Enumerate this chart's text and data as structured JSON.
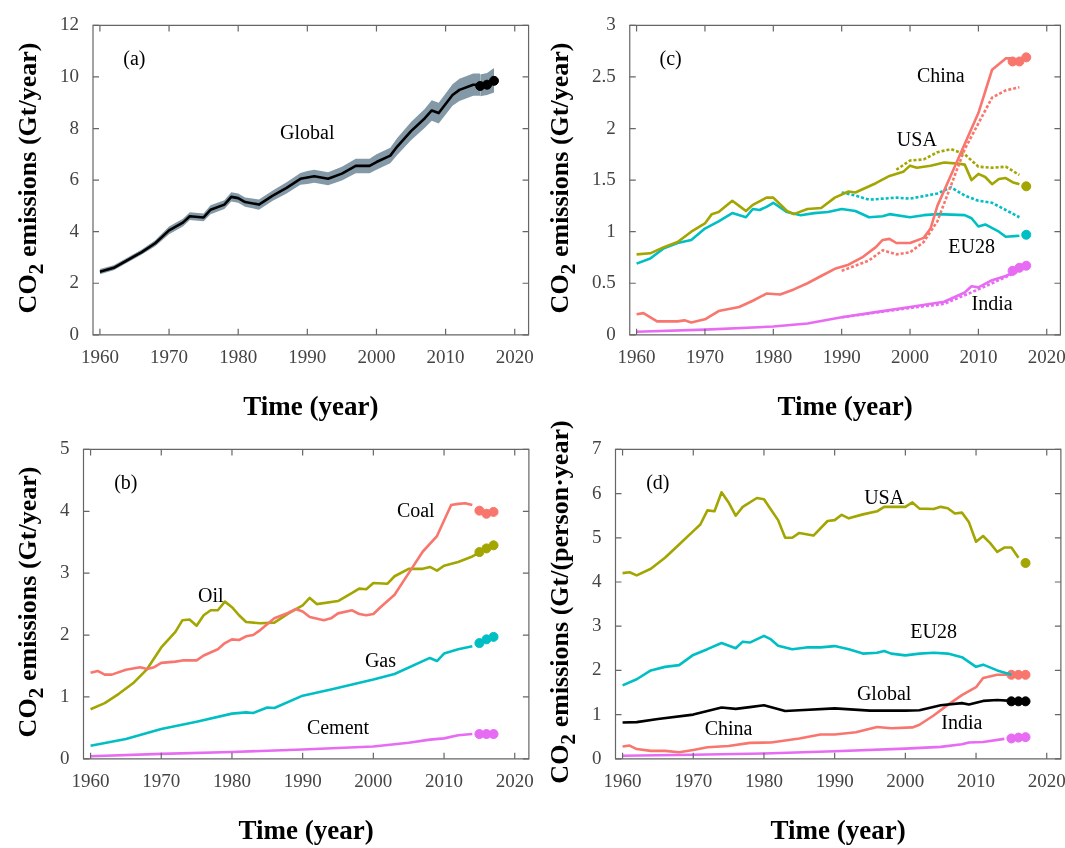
{
  "chart_data": [
    {
      "type": "line",
      "annotations": [
        "(a)"
      ],
      "xlabel": "Time (year)",
      "ylabel": "CO$_{2}$ emissions (Gt/year)",
      "xlim": [
        1959,
        2022
      ],
      "xticks": [
        1960,
        1970,
        1980,
        1990,
        2000,
        2010,
        2020
      ],
      "ylim": [
        0,
        12
      ],
      "yticks": [
        0,
        2,
        4,
        6,
        8,
        10,
        12
      ],
      "series": [
        {
          "name": "Global",
          "color": "#000000",
          "x": [
            1960,
            1962,
            1964,
            1966,
            1968,
            1970,
            1972,
            1973,
            1975,
            1976,
            1978,
            1979,
            1980,
            1981,
            1983,
            1985,
            1987,
            1989,
            1990,
            1991,
            1993,
            1995,
            1997,
            1999,
            2000,
            2002,
            2003,
            2005,
            2007,
            2008,
            2009,
            2011,
            2012,
            2014,
            2015
          ],
          "values": [
            2.45,
            2.6,
            2.9,
            3.2,
            3.55,
            4.05,
            4.35,
            4.6,
            4.55,
            4.85,
            5.05,
            5.35,
            5.3,
            5.15,
            5.05,
            5.4,
            5.7,
            6.05,
            6.1,
            6.15,
            6.05,
            6.25,
            6.55,
            6.55,
            6.7,
            6.95,
            7.3,
            7.9,
            8.4,
            8.7,
            8.6,
            9.3,
            9.5,
            9.7,
            9.7
          ],
          "lower": [
            2.35,
            2.5,
            2.8,
            3.1,
            3.43,
            3.9,
            4.2,
            4.45,
            4.4,
            4.68,
            4.88,
            5.17,
            5.12,
            4.97,
            4.85,
            5.2,
            5.48,
            5.82,
            5.85,
            5.9,
            5.8,
            5.98,
            6.27,
            6.27,
            6.4,
            6.65,
            6.97,
            7.55,
            8.03,
            8.3,
            8.2,
            8.88,
            9.07,
            9.27,
            9.27
          ],
          "upper": [
            2.55,
            2.7,
            3.0,
            3.3,
            3.67,
            4.2,
            4.5,
            4.75,
            4.7,
            5.02,
            5.22,
            5.53,
            5.48,
            5.33,
            5.25,
            5.6,
            5.92,
            6.28,
            6.35,
            6.4,
            6.3,
            6.52,
            6.83,
            6.83,
            7.0,
            7.25,
            7.63,
            8.25,
            8.77,
            9.1,
            9.0,
            9.72,
            9.93,
            10.13,
            10.13
          ]
        },
        {
          "type": "scatter",
          "marker": "circle",
          "color": "#000000",
          "x": [
            2015,
            2016,
            2017
          ],
          "values": [
            9.65,
            9.7,
            9.85
          ],
          "lower": [
            9.25,
            9.3,
            9.4
          ],
          "upper": [
            10.1,
            10.15,
            10.35
          ]
        }
      ]
    },
    {
      "type": "line",
      "annotations": [
        "(c)"
      ],
      "xlabel": "Time (year)",
      "ylabel": "CO$_{2}$ emissions (Gt/year)",
      "xlim": [
        1959,
        2022
      ],
      "xticks": [
        1960,
        1970,
        1980,
        1990,
        2000,
        2010,
        2020
      ],
      "ylim": [
        0,
        3
      ],
      "yticks": [
        0,
        0.5,
        1,
        1.5,
        2,
        2.5,
        3
      ],
      "series": [
        {
          "name": "China",
          "color": "#f8766d",
          "x": [
            1960,
            1961,
            1963,
            1966,
            1967,
            1968,
            1970,
            1972,
            1975,
            1977,
            1979,
            1981,
            1983,
            1985,
            1987,
            1989,
            1991,
            1993,
            1995,
            1996,
            1997,
            1998,
            2000,
            2002,
            2003,
            2004,
            2006,
            2008,
            2010,
            2012,
            2014,
            2015
          ],
          "values": [
            0.2,
            0.21,
            0.13,
            0.13,
            0.14,
            0.12,
            0.15,
            0.23,
            0.27,
            0.33,
            0.4,
            0.39,
            0.44,
            0.5,
            0.57,
            0.64,
            0.68,
            0.75,
            0.85,
            0.92,
            0.93,
            0.89,
            0.89,
            0.94,
            1.03,
            1.25,
            1.55,
            1.85,
            2.15,
            2.57,
            2.68,
            2.68
          ]
        },
        {
          "line_style": "dotted",
          "color": "#f8766d",
          "x": [
            1990,
            1994,
            1996,
            1998,
            2000,
            2002,
            2004,
            2006,
            2008,
            2010,
            2012,
            2014,
            2016
          ],
          "values": [
            0.62,
            0.72,
            0.82,
            0.78,
            0.8,
            0.9,
            1.1,
            1.45,
            1.8,
            2.05,
            2.3,
            2.37,
            2.4
          ]
        },
        {
          "type": "scatter",
          "marker": "circle",
          "color": "#f8766d",
          "x": [
            2015,
            2016,
            2017
          ],
          "values": [
            2.65,
            2.65,
            2.69
          ]
        },
        {
          "name": "USA",
          "color": "#a3a500",
          "x": [
            1960,
            1962,
            1964,
            1966,
            1968,
            1970,
            1971,
            1972,
            1974,
            1975,
            1976,
            1977,
            1979,
            1980,
            1982,
            1983,
            1985,
            1987,
            1989,
            1991,
            1992,
            1995,
            1997,
            1999,
            2000,
            2001,
            2003,
            2005,
            2007,
            2008,
            2009,
            2010,
            2011,
            2012,
            2013,
            2014,
            2015,
            2016
          ],
          "values": [
            0.78,
            0.79,
            0.85,
            0.9,
            1.0,
            1.08,
            1.17,
            1.19,
            1.3,
            1.25,
            1.2,
            1.26,
            1.33,
            1.33,
            1.2,
            1.17,
            1.22,
            1.23,
            1.33,
            1.39,
            1.38,
            1.47,
            1.54,
            1.58,
            1.64,
            1.62,
            1.64,
            1.67,
            1.66,
            1.65,
            1.5,
            1.56,
            1.53,
            1.46,
            1.51,
            1.52,
            1.48,
            1.46
          ]
        },
        {
          "line_style": "dotted",
          "color": "#a3a500",
          "x": [
            1998,
            2000,
            2002,
            2004,
            2006,
            2008,
            2010,
            2012,
            2014,
            2016
          ],
          "values": [
            1.6,
            1.69,
            1.7,
            1.77,
            1.8,
            1.75,
            1.63,
            1.62,
            1.63,
            1.55
          ]
        },
        {
          "type": "scatter",
          "marker": "circle",
          "color": "#a3a500",
          "x": [
            2017
          ],
          "values": [
            1.44
          ]
        },
        {
          "name": "EU28",
          "color": "#00bfc4",
          "x": [
            1960,
            1962,
            1964,
            1966,
            1968,
            1970,
            1972,
            1974,
            1976,
            1977,
            1978,
            1979,
            1980,
            1982,
            1984,
            1986,
            1988,
            1990,
            1992,
            1994,
            1996,
            1997,
            2000,
            2002,
            2004,
            2008,
            2009,
            2010,
            2011,
            2013,
            2014,
            2016
          ],
          "values": [
            0.69,
            0.74,
            0.84,
            0.89,
            0.92,
            1.03,
            1.1,
            1.18,
            1.14,
            1.22,
            1.21,
            1.24,
            1.28,
            1.19,
            1.16,
            1.18,
            1.19,
            1.22,
            1.2,
            1.14,
            1.15,
            1.17,
            1.14,
            1.16,
            1.17,
            1.16,
            1.13,
            1.05,
            1.07,
            1.0,
            0.95,
            0.96
          ]
        },
        {
          "line_style": "dotted",
          "color": "#00bfc4",
          "x": [
            1990,
            1992,
            1994,
            1998,
            2000,
            2004,
            2006,
            2008,
            2010,
            2012,
            2016
          ],
          "values": [
            1.38,
            1.35,
            1.31,
            1.33,
            1.32,
            1.37,
            1.43,
            1.35,
            1.3,
            1.28,
            1.14
          ]
        },
        {
          "type": "scatter",
          "marker": "circle",
          "color": "#00bfc4",
          "x": [
            2017
          ],
          "values": [
            0.97
          ]
        },
        {
          "name": "India",
          "color": "#e76bf3",
          "x": [
            1960,
            1970,
            1980,
            1985,
            1990,
            1995,
            2000,
            2005,
            2008,
            2009,
            2010,
            2012,
            2014,
            2016
          ],
          "values": [
            0.03,
            0.05,
            0.08,
            0.11,
            0.17,
            0.22,
            0.27,
            0.32,
            0.41,
            0.47,
            0.46,
            0.53,
            0.57,
            0.63
          ]
        },
        {
          "line_style": "dotted",
          "color": "#e76bf3",
          "x": [
            1990,
            2000,
            2005,
            2010,
            2016
          ],
          "values": [
            0.17,
            0.26,
            0.3,
            0.44,
            0.62
          ]
        },
        {
          "type": "scatter",
          "marker": "circle",
          "color": "#e76bf3",
          "x": [
            2015,
            2016,
            2017
          ],
          "values": [
            0.62,
            0.65,
            0.67
          ]
        }
      ]
    },
    {
      "type": "line",
      "annotations": [
        "(b)"
      ],
      "xlabel": "Time (year)",
      "ylabel": "CO$_{2}$ emissions (Gt/year)",
      "xlim": [
        1959,
        2022
      ],
      "xticks": [
        1960,
        1970,
        1980,
        1990,
        2000,
        2010,
        2020
      ],
      "ylim": [
        0,
        5
      ],
      "yticks": [
        0,
        1,
        2,
        3,
        4,
        5
      ],
      "series": [
        {
          "name": "Coal",
          "color": "#f8766d",
          "x": [
            1960,
            1961,
            1962,
            1963,
            1965,
            1967,
            1968,
            1969,
            1970,
            1972,
            1973,
            1975,
            1976,
            1978,
            1979,
            1980,
            1981,
            1982,
            1983,
            1984,
            1986,
            1988,
            1989,
            1990,
            1991,
            1993,
            1994,
            1995,
            1997,
            1998,
            1999,
            2000,
            2001,
            2003,
            2005,
            2007,
            2009,
            2010,
            2011,
            2012,
            2013,
            2014
          ],
          "values": [
            1.39,
            1.42,
            1.36,
            1.36,
            1.44,
            1.48,
            1.45,
            1.48,
            1.55,
            1.57,
            1.59,
            1.59,
            1.67,
            1.77,
            1.87,
            1.93,
            1.92,
            1.98,
            2.0,
            2.08,
            2.27,
            2.36,
            2.42,
            2.38,
            2.29,
            2.24,
            2.27,
            2.35,
            2.4,
            2.34,
            2.32,
            2.34,
            2.45,
            2.65,
            3.0,
            3.35,
            3.6,
            3.85,
            4.1,
            4.12,
            4.13,
            4.1
          ]
        },
        {
          "type": "scatter",
          "marker": "circle",
          "color": "#f8766d",
          "x": [
            2015,
            2016,
            2017
          ],
          "values": [
            4.01,
            3.96,
            3.99
          ]
        },
        {
          "name": "Oil",
          "color": "#a3a500",
          "x": [
            1960,
            1962,
            1964,
            1966,
            1968,
            1970,
            1972,
            1973,
            1974,
            1975,
            1976,
            1977,
            1978,
            1979,
            1980,
            1981,
            1982,
            1984,
            1986,
            1988,
            1990,
            1991,
            1992,
            1995,
            1997,
            1998,
            1999,
            2000,
            2002,
            2003,
            2005,
            2007,
            2008,
            2009,
            2010,
            2012,
            2014,
            2015
          ],
          "values": [
            0.8,
            0.9,
            1.05,
            1.22,
            1.45,
            1.8,
            2.05,
            2.24,
            2.25,
            2.15,
            2.32,
            2.4,
            2.4,
            2.54,
            2.45,
            2.32,
            2.21,
            2.19,
            2.2,
            2.35,
            2.48,
            2.6,
            2.5,
            2.55,
            2.68,
            2.75,
            2.74,
            2.84,
            2.83,
            2.95,
            3.07,
            3.07,
            3.1,
            3.04,
            3.12,
            3.18,
            3.27,
            3.33
          ]
        },
        {
          "type": "scatter",
          "marker": "circle",
          "color": "#a3a500",
          "x": [
            2015,
            2016,
            2017
          ],
          "values": [
            3.34,
            3.4,
            3.45
          ]
        },
        {
          "name": "Gas",
          "color": "#00bfc4",
          "x": [
            1960,
            1965,
            1970,
            1975,
            1980,
            1982,
            1983,
            1985,
            1986,
            1990,
            1994,
            1997,
            2000,
            2003,
            2008,
            2009,
            2010,
            2012,
            2014
          ],
          "values": [
            0.21,
            0.32,
            0.48,
            0.6,
            0.73,
            0.75,
            0.74,
            0.83,
            0.82,
            1.02,
            1.12,
            1.2,
            1.28,
            1.37,
            1.63,
            1.58,
            1.7,
            1.77,
            1.82
          ]
        },
        {
          "type": "scatter",
          "marker": "circle",
          "color": "#00bfc4",
          "x": [
            2015,
            2016,
            2017
          ],
          "values": [
            1.87,
            1.93,
            1.97
          ]
        },
        {
          "name": "Cement",
          "color": "#e76bf3",
          "x": [
            1960,
            1970,
            1980,
            1990,
            2000,
            2005,
            2008,
            2010,
            2012,
            2014
          ],
          "values": [
            0.04,
            0.08,
            0.11,
            0.15,
            0.2,
            0.26,
            0.31,
            0.33,
            0.38,
            0.4
          ]
        },
        {
          "type": "scatter",
          "marker": "circle",
          "color": "#e76bf3",
          "x": [
            2015,
            2016,
            2017
          ],
          "values": [
            0.4,
            0.4,
            0.4
          ]
        }
      ]
    },
    {
      "type": "line",
      "annotations": [
        "(d)"
      ],
      "xlabel": "Time (year)",
      "ylabel": "CO$_{2}$ emissions (Gt/(person·year)",
      "xlim": [
        1959,
        2022
      ],
      "xticks": [
        1960,
        1970,
        1980,
        1990,
        2000,
        2010,
        2020
      ],
      "ylim": [
        0,
        7
      ],
      "yticks": [
        0,
        1,
        2,
        3,
        4,
        5,
        6,
        7
      ],
      "series": [
        {
          "name": "USA",
          "color": "#a3a500",
          "x": [
            1960,
            1961,
            1962,
            1964,
            1966,
            1968,
            1970,
            1971,
            1972,
            1973,
            1974,
            1975,
            1976,
            1977,
            1979,
            1980,
            1982,
            1983,
            1984,
            1985,
            1987,
            1989,
            1990,
            1991,
            1992,
            1994,
            1996,
            1997,
            1999,
            2000,
            2001,
            2002,
            2004,
            2005,
            2006,
            2007,
            2008,
            2009,
            2010,
            2011,
            2012,
            2013,
            2014,
            2015,
            2016
          ],
          "values": [
            4.2,
            4.22,
            4.15,
            4.3,
            4.55,
            4.85,
            5.15,
            5.3,
            5.62,
            5.6,
            6.03,
            5.8,
            5.5,
            5.7,
            5.9,
            5.87,
            5.4,
            5.0,
            5.0,
            5.11,
            5.05,
            5.38,
            5.4,
            5.52,
            5.44,
            5.53,
            5.6,
            5.7,
            5.7,
            5.7,
            5.8,
            5.66,
            5.65,
            5.7,
            5.67,
            5.55,
            5.57,
            5.35,
            4.91,
            5.04,
            4.88,
            4.68,
            4.78,
            4.78,
            4.55
          ]
        },
        {
          "type": "scatter",
          "marker": "circle",
          "color": "#a3a500",
          "x": [
            2017
          ],
          "values": [
            4.43
          ]
        },
        {
          "name": "EU28",
          "color": "#00bfc4",
          "x": [
            1960,
            1962,
            1964,
            1966,
            1968,
            1970,
            1972,
            1974,
            1976,
            1977,
            1978,
            1980,
            1981,
            1982,
            1984,
            1986,
            1988,
            1990,
            1992,
            1994,
            1996,
            1997,
            1998,
            2000,
            2002,
            2004,
            2006,
            2008,
            2010,
            2011,
            2013,
            2015
          ],
          "values": [
            1.66,
            1.8,
            2.0,
            2.08,
            2.12,
            2.35,
            2.48,
            2.62,
            2.5,
            2.65,
            2.63,
            2.78,
            2.7,
            2.56,
            2.48,
            2.52,
            2.52,
            2.55,
            2.48,
            2.38,
            2.4,
            2.44,
            2.38,
            2.34,
            2.38,
            2.4,
            2.38,
            2.3,
            2.08,
            2.13,
            2.0,
            1.9
          ]
        },
        {
          "name": "Global",
          "color": "#000000",
          "x": [
            1960,
            1962,
            1965,
            1970,
            1974,
            1976,
            1978,
            1980,
            1983,
            1985,
            1990,
            1995,
            2000,
            2002,
            2005,
            2008,
            2009,
            2011,
            2013,
            2015
          ],
          "values": [
            0.82,
            0.83,
            0.9,
            1.0,
            1.16,
            1.13,
            1.17,
            1.21,
            1.08,
            1.1,
            1.14,
            1.09,
            1.09,
            1.1,
            1.21,
            1.26,
            1.23,
            1.31,
            1.33,
            1.31
          ]
        },
        {
          "type": "scatter",
          "marker": "circle",
          "color": "#000000",
          "x": [
            2015,
            2016,
            2017
          ],
          "values": [
            1.3,
            1.3,
            1.3
          ]
        },
        {
          "name": "China",
          "color": "#f8766d",
          "x": [
            1960,
            1961,
            1962,
            1964,
            1966,
            1968,
            1970,
            1972,
            1975,
            1978,
            1981,
            1985,
            1988,
            1990,
            1993,
            1996,
            1998,
            2001,
            2002,
            2004,
            2006,
            2008,
            2010,
            2011,
            2013,
            2015
          ],
          "values": [
            0.28,
            0.3,
            0.22,
            0.18,
            0.18,
            0.15,
            0.2,
            0.26,
            0.29,
            0.36,
            0.37,
            0.46,
            0.55,
            0.55,
            0.6,
            0.72,
            0.69,
            0.71,
            0.77,
            0.98,
            1.22,
            1.44,
            1.62,
            1.83,
            1.9,
            1.9
          ]
        },
        {
          "type": "scatter",
          "marker": "circle",
          "color": "#f8766d",
          "x": [
            2015,
            2016,
            2017
          ],
          "values": [
            1.9,
            1.9,
            1.9
          ]
        },
        {
          "name": "India",
          "color": "#e76bf3",
          "x": [
            1960,
            1970,
            1980,
            1990,
            2000,
            2005,
            2008,
            2009,
            2011,
            2014
          ],
          "values": [
            0.07,
            0.09,
            0.12,
            0.17,
            0.23,
            0.27,
            0.33,
            0.37,
            0.38,
            0.45
          ]
        },
        {
          "type": "scatter",
          "marker": "circle",
          "color": "#e76bf3",
          "x": [
            2015,
            2016,
            2017
          ],
          "values": [
            0.46,
            0.48,
            0.49
          ]
        }
      ]
    }
  ]
}
